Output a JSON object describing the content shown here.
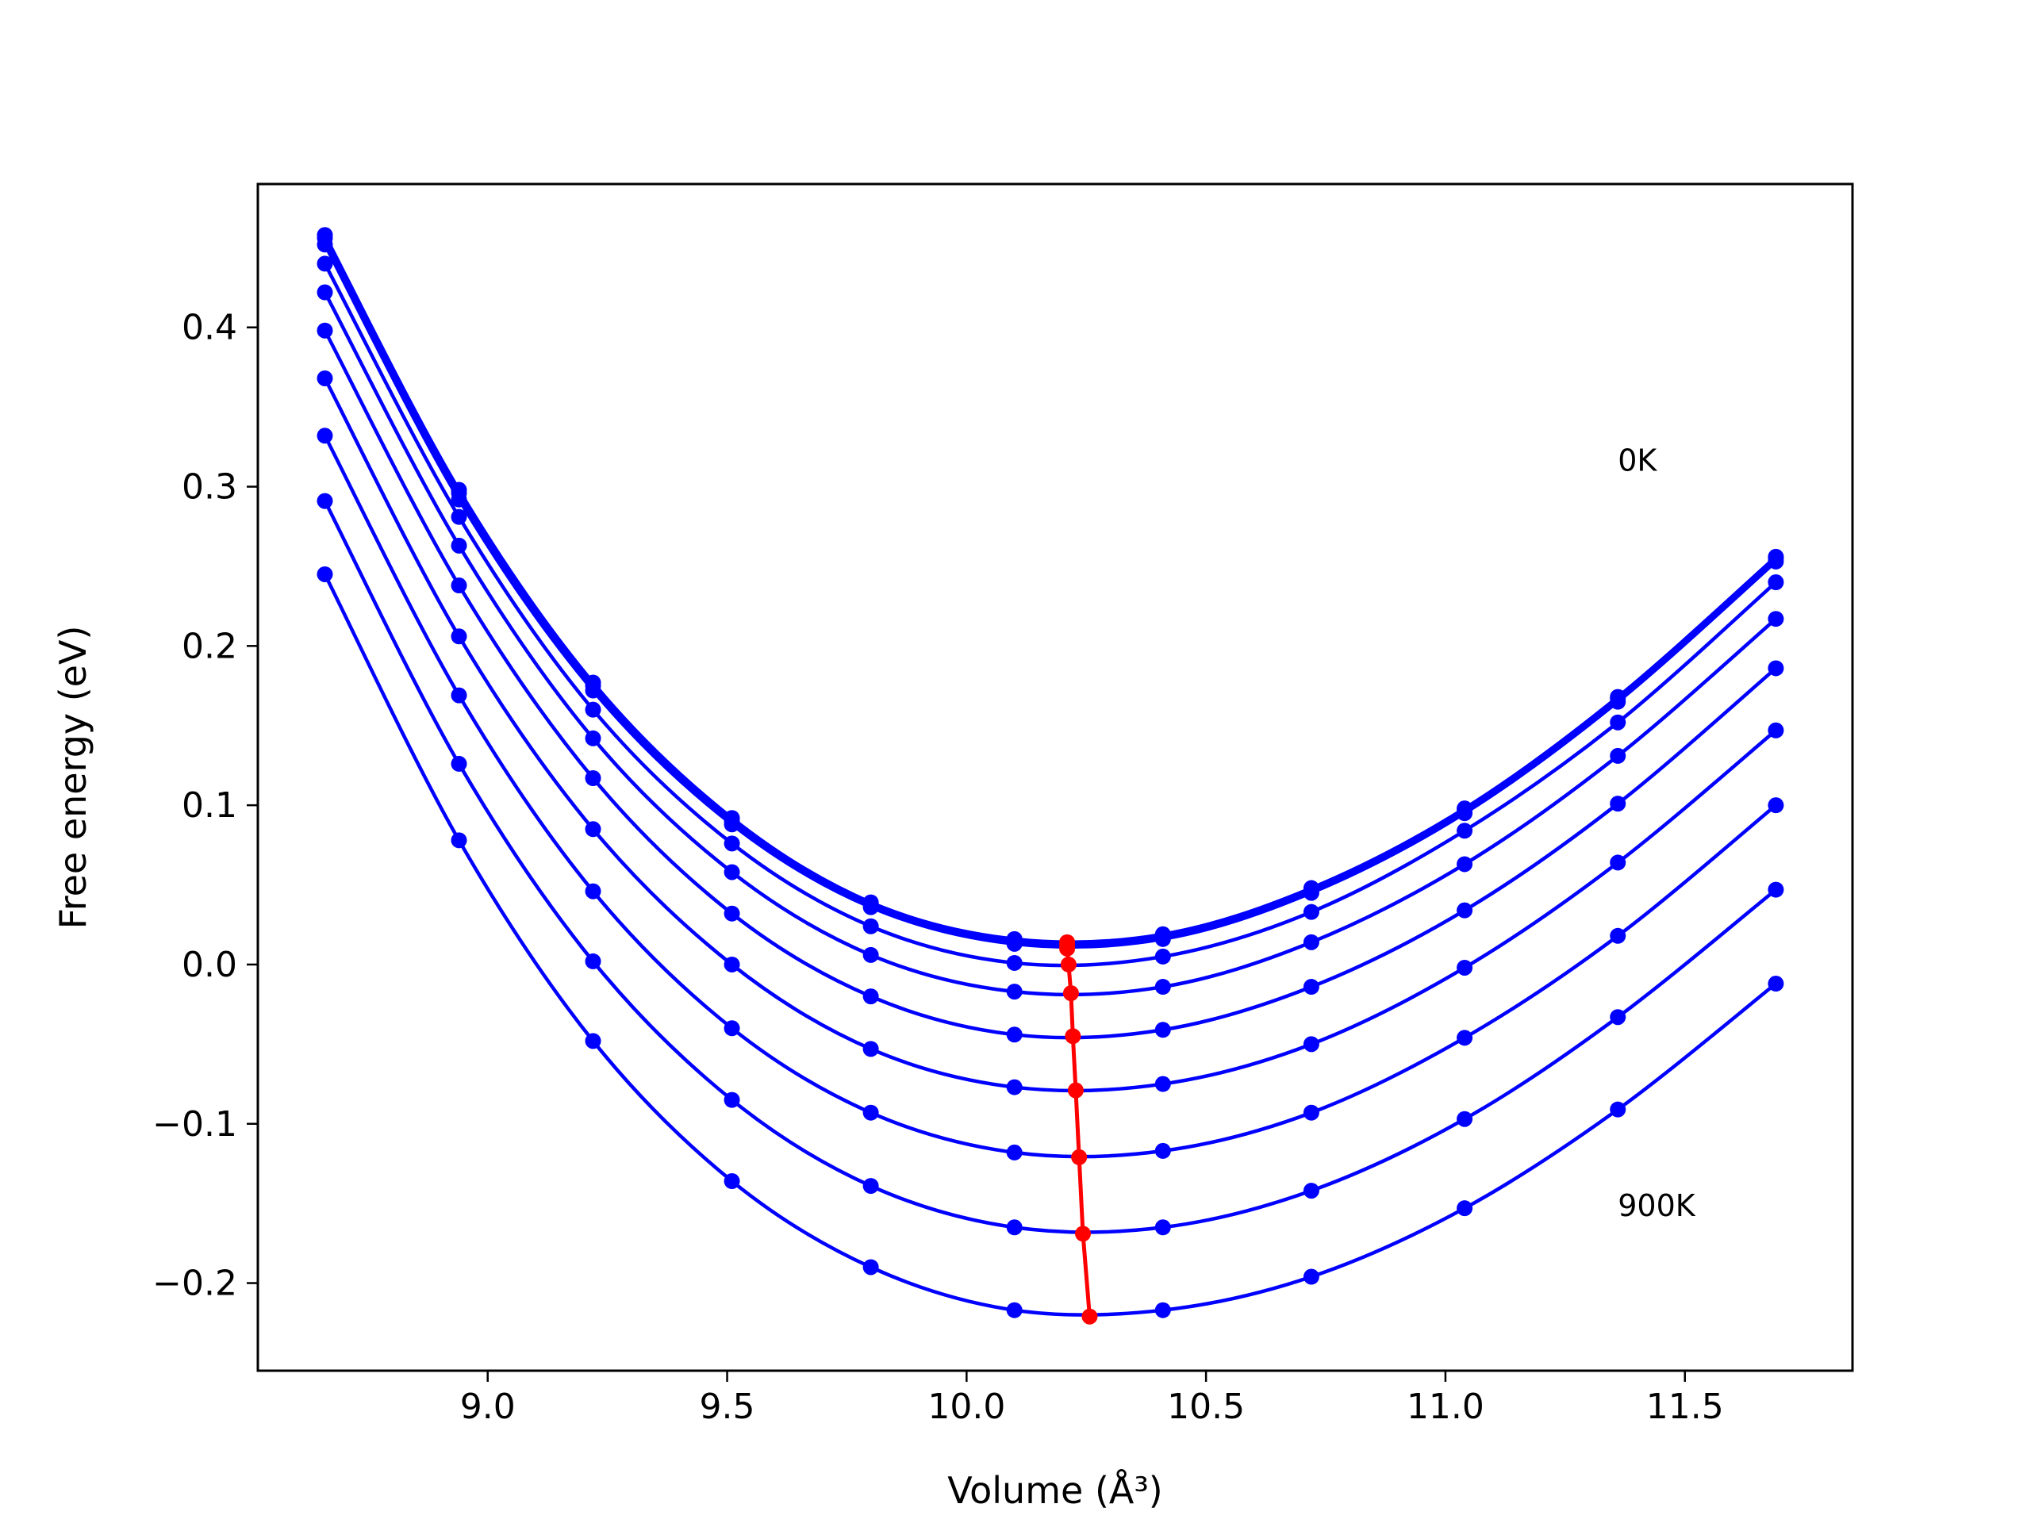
{
  "chart_data": {
    "type": "line",
    "xlabel": "Volume (Å³)",
    "ylabel": "Free energy (eV)",
    "xlim": [
      8.52,
      11.85
    ],
    "ylim": [
      -0.255,
      0.49
    ],
    "xticks": [
      9.0,
      9.5,
      10.0,
      10.5,
      11.0,
      11.5
    ],
    "yticks": [
      -0.2,
      -0.1,
      0.0,
      0.1,
      0.2,
      0.3,
      0.4
    ],
    "xtick_labels": [
      "9.0",
      "9.5",
      "10.0",
      "10.5",
      "11.0",
      "11.5"
    ],
    "ytick_labels": [
      "−0.2",
      "−0.1",
      "0.0",
      "0.1",
      "0.2",
      "0.3",
      "0.4"
    ],
    "grid": false,
    "colors": {
      "curves": "#0000ff",
      "minima": "#ff0000"
    },
    "annotations": [
      {
        "text": "0K",
        "x": 11.36,
        "y": 0.31
      },
      {
        "text": "900K",
        "x": 11.36,
        "y": -0.158
      }
    ],
    "x": [
      8.66,
      8.94,
      9.22,
      9.51,
      9.8,
      10.1,
      10.41,
      10.72,
      11.04,
      11.36,
      11.69
    ],
    "series": [
      {
        "values": [
          0.458,
          0.298,
          0.177,
          0.092,
          0.039,
          0.016,
          0.019,
          0.048,
          0.098,
          0.168,
          0.256
        ]
      },
      {
        "values": [
          0.456,
          0.296,
          0.175,
          0.09,
          0.038,
          0.015,
          0.018,
          0.047,
          0.097,
          0.167,
          0.255
        ]
      },
      {
        "values": [
          0.452,
          0.292,
          0.172,
          0.088,
          0.036,
          0.013,
          0.016,
          0.045,
          0.095,
          0.165,
          0.253
        ]
      },
      {
        "values": [
          0.44,
          0.281,
          0.16,
          0.076,
          0.024,
          0.001,
          0.005,
          0.033,
          0.084,
          0.152,
          0.24
        ]
      },
      {
        "values": [
          0.422,
          0.263,
          0.142,
          0.058,
          0.006,
          -0.017,
          -0.014,
          0.014,
          0.063,
          0.131,
          0.217
        ]
      },
      {
        "values": [
          0.398,
          0.238,
          0.117,
          0.032,
          -0.02,
          -0.044,
          -0.041,
          -0.014,
          0.034,
          0.101,
          0.186
        ]
      },
      {
        "values": [
          0.368,
          0.206,
          0.085,
          0.0,
          -0.053,
          -0.077,
          -0.075,
          -0.05,
          -0.002,
          0.064,
          0.147
        ]
      },
      {
        "values": [
          0.332,
          0.169,
          0.046,
          -0.04,
          -0.093,
          -0.118,
          -0.117,
          -0.093,
          -0.046,
          0.018,
          0.1
        ]
      },
      {
        "values": [
          0.291,
          0.126,
          0.002,
          -0.085,
          -0.139,
          -0.165,
          -0.165,
          -0.142,
          -0.097,
          -0.033,
          0.047
        ]
      },
      {
        "values": [
          0.245,
          0.078,
          -0.048,
          -0.136,
          -0.19,
          -0.217,
          -0.217,
          -0.196,
          -0.153,
          -0.091,
          -0.012
        ]
      }
    ],
    "minima": {
      "x": [
        10.21,
        10.21,
        10.21,
        10.213,
        10.218,
        10.222,
        10.228,
        10.235,
        10.243,
        10.257
      ],
      "y": [
        0.014,
        0.012,
        0.01,
        0.0,
        -0.018,
        -0.045,
        -0.079,
        -0.121,
        -0.169,
        -0.221
      ]
    }
  }
}
